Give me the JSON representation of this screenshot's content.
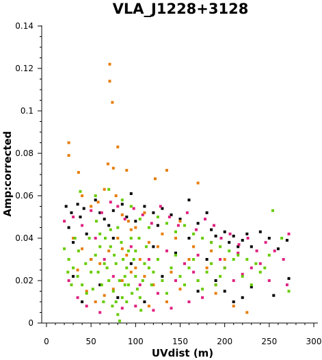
{
  "chart_data": {
    "type": "scatter",
    "title": "VLA_J1228+3128",
    "xlabel": "UVdist (m)",
    "ylabel": "Amp:corrected",
    "xlim": [
      0,
      300
    ],
    "ylim": [
      0,
      0.14
    ],
    "xticks": [
      "0",
      "50",
      "100",
      "150",
      "200",
      "250",
      "300"
    ],
    "yticks": [
      "0",
      "0.02",
      "0.04",
      "0.06",
      "0.08",
      "0.1",
      "0.12",
      "0.14"
    ],
    "grid": false,
    "legend": "none",
    "series": [
      {
        "color": "#000000",
        "points": [
          [
            22,
            0.055
          ],
          [
            25,
            0.045
          ],
          [
            28,
            0.052
          ],
          [
            35,
            0.056
          ],
          [
            38,
            0.05
          ],
          [
            42,
            0.054
          ],
          [
            30,
            0.038
          ],
          [
            45,
            0.042
          ],
          [
            55,
            0.058
          ],
          [
            60,
            0.052
          ],
          [
            65,
            0.049
          ],
          [
            70,
            0.046
          ],
          [
            75,
            0.053
          ],
          [
            85,
            0.056
          ],
          [
            90,
            0.05
          ],
          [
            95,
            0.061
          ],
          [
            100,
            0.048
          ],
          [
            110,
            0.055
          ],
          [
            120,
            0.052
          ],
          [
            125,
            0.046
          ],
          [
            130,
            0.054
          ],
          [
            140,
            0.051
          ],
          [
            150,
            0.049
          ],
          [
            160,
            0.058
          ],
          [
            170,
            0.047
          ],
          [
            180,
            0.052
          ],
          [
            185,
            0.044
          ],
          [
            190,
            0.041
          ],
          [
            200,
            0.043
          ],
          [
            205,
            0.038
          ],
          [
            210,
            0.041
          ],
          [
            215,
            0.036
          ],
          [
            220,
            0.039
          ],
          [
            225,
            0.042
          ],
          [
            230,
            0.036
          ],
          [
            240,
            0.043
          ],
          [
            250,
            0.04
          ],
          [
            255,
            0.013
          ],
          [
            260,
            0.035
          ],
          [
            270,
            0.039
          ],
          [
            272,
            0.021
          ],
          [
            230,
            0.017
          ],
          [
            220,
            0.012
          ],
          [
            210,
            0.01
          ],
          [
            200,
            0.015
          ],
          [
            145,
            0.033
          ],
          [
            95,
            0.028
          ],
          [
            50,
            0.03
          ],
          [
            60,
            0.018
          ],
          [
            80,
            0.012
          ],
          [
            110,
            0.01
          ],
          [
            130,
            0.022
          ],
          [
            170,
            0.015
          ],
          [
            190,
            0.02
          ],
          [
            40,
            0.01
          ],
          [
            30,
            0.022
          ],
          [
            120,
            0.036
          ],
          [
            160,
            0.04
          ],
          [
            180,
            0.03
          ],
          [
            75,
            0.04
          ]
        ]
      },
      {
        "color": "#e0207f",
        "points": [
          [
            20,
            0.048
          ],
          [
            30,
            0.05
          ],
          [
            40,
            0.046
          ],
          [
            50,
            0.053
          ],
          [
            62,
            0.052
          ],
          [
            72,
            0.057
          ],
          [
            80,
            0.055
          ],
          [
            88,
            0.049
          ],
          [
            98,
            0.054
          ],
          [
            108,
            0.051
          ],
          [
            118,
            0.047
          ],
          [
            128,
            0.055
          ],
          [
            138,
            0.05
          ],
          [
            148,
            0.046
          ],
          [
            158,
            0.052
          ],
          [
            168,
            0.044
          ],
          [
            178,
            0.049
          ],
          [
            188,
            0.046
          ],
          [
            196,
            0.04
          ],
          [
            206,
            0.042
          ],
          [
            216,
            0.037
          ],
          [
            226,
            0.04
          ],
          [
            236,
            0.034
          ],
          [
            246,
            0.038
          ],
          [
            256,
            0.034
          ],
          [
            266,
            0.03
          ],
          [
            272,
            0.042
          ],
          [
            270,
            0.018
          ],
          [
            250,
            0.02
          ],
          [
            240,
            0.028
          ],
          [
            230,
            0.026
          ],
          [
            220,
            0.023
          ],
          [
            210,
            0.02
          ],
          [
            200,
            0.026
          ],
          [
            190,
            0.018
          ],
          [
            175,
            0.012
          ],
          [
            160,
            0.01
          ],
          [
            140,
            0.007
          ],
          [
            120,
            0.006
          ],
          [
            100,
            0.008
          ],
          [
            85,
            0.007
          ],
          [
            60,
            0.005
          ],
          [
            45,
            0.008
          ],
          [
            35,
            0.012
          ],
          [
            25,
            0.02
          ],
          [
            55,
            0.04
          ],
          [
            95,
            0.036
          ],
          [
            115,
            0.03
          ],
          [
            135,
            0.034
          ],
          [
            155,
            0.028
          ],
          [
            170,
            0.032
          ],
          [
            185,
            0.038
          ],
          [
            65,
            0.03
          ],
          [
            75,
            0.022
          ],
          [
            105,
            0.018
          ],
          [
            125,
            0.014
          ],
          [
            145,
            0.02
          ],
          [
            165,
            0.024
          ],
          [
            195,
            0.03
          ],
          [
            215,
            0.033
          ]
        ]
      },
      {
        "color": "#e87d0a",
        "points": [
          [
            71,
            0.122
          ],
          [
            71,
            0.114
          ],
          [
            74,
            0.104
          ],
          [
            80,
            0.083
          ],
          [
            25,
            0.085
          ],
          [
            25,
            0.079
          ],
          [
            36,
            0.071
          ],
          [
            69,
            0.075
          ],
          [
            75,
            0.073
          ],
          [
            90,
            0.072
          ],
          [
            135,
            0.072
          ],
          [
            40,
            0.06
          ],
          [
            50,
            0.055
          ],
          [
            58,
            0.057
          ],
          [
            65,
            0.063
          ],
          [
            78,
            0.06
          ],
          [
            85,
            0.051
          ],
          [
            92,
            0.048
          ],
          [
            100,
            0.045
          ],
          [
            110,
            0.052
          ],
          [
            122,
            0.068
          ],
          [
            170,
            0.066
          ],
          [
            150,
            0.048
          ],
          [
            130,
            0.042
          ],
          [
            115,
            0.038
          ],
          [
            105,
            0.03
          ],
          [
            95,
            0.024
          ],
          [
            85,
            0.02
          ],
          [
            75,
            0.016
          ],
          [
            65,
            0.013
          ],
          [
            55,
            0.01
          ],
          [
            45,
            0.015
          ],
          [
            35,
            0.025
          ],
          [
            30,
            0.04
          ],
          [
            40,
            0.035
          ],
          [
            50,
            0.03
          ],
          [
            60,
            0.028
          ],
          [
            70,
            0.034
          ],
          [
            80,
            0.04
          ],
          [
            90,
            0.032
          ],
          [
            100,
            0.026
          ],
          [
            110,
            0.022
          ],
          [
            120,
            0.018
          ],
          [
            140,
            0.024
          ],
          [
            160,
            0.03
          ],
          [
            180,
            0.026
          ],
          [
            200,
            0.03
          ],
          [
            210,
            0.008
          ],
          [
            225,
            0.005
          ],
          [
            190,
            0.014
          ],
          [
            170,
            0.02
          ],
          [
            150,
            0.016
          ],
          [
            135,
            0.01
          ],
          [
            115,
            0.008
          ],
          [
            85,
            0.035
          ],
          [
            95,
            0.044
          ],
          [
            125,
            0.036
          ],
          [
            145,
            0.04
          ],
          [
            165,
            0.036
          ],
          [
            185,
            0.034
          ]
        ]
      },
      {
        "color": "#66cc00",
        "points": [
          [
            38,
            0.062
          ],
          [
            55,
            0.06
          ],
          [
            70,
            0.063
          ],
          [
            85,
            0.058
          ],
          [
            95,
            0.055
          ],
          [
            105,
            0.049
          ],
          [
            115,
            0.045
          ],
          [
            125,
            0.05
          ],
          [
            135,
            0.047
          ],
          [
            145,
            0.043
          ],
          [
            155,
            0.046
          ],
          [
            165,
            0.042
          ],
          [
            175,
            0.04
          ],
          [
            185,
            0.038
          ],
          [
            195,
            0.036
          ],
          [
            205,
            0.034
          ],
          [
            215,
            0.032
          ],
          [
            225,
            0.03
          ],
          [
            235,
            0.028
          ],
          [
            245,
            0.026
          ],
          [
            254,
            0.053
          ],
          [
            264,
            0.04
          ],
          [
            272,
            0.015
          ],
          [
            20,
            0.035
          ],
          [
            25,
            0.03
          ],
          [
            30,
            0.026
          ],
          [
            35,
            0.022
          ],
          [
            40,
            0.018
          ],
          [
            45,
            0.014
          ],
          [
            50,
            0.024
          ],
          [
            55,
            0.032
          ],
          [
            60,
            0.036
          ],
          [
            65,
            0.028
          ],
          [
            70,
            0.02
          ],
          [
            75,
            0.015
          ],
          [
            78,
            0.01
          ],
          [
            80,
            0.004
          ],
          [
            82,
            0.001
          ],
          [
            85,
            0.012
          ],
          [
            88,
            0.018
          ],
          [
            90,
            0.026
          ],
          [
            92,
            0.034
          ],
          [
            95,
            0.04
          ],
          [
            98,
            0.03
          ],
          [
            100,
            0.022
          ],
          [
            102,
            0.016
          ],
          [
            105,
            0.012
          ],
          [
            108,
            0.02
          ],
          [
            110,
            0.028
          ],
          [
            112,
            0.036
          ],
          [
            115,
            0.026
          ],
          [
            118,
            0.018
          ],
          [
            120,
            0.024
          ],
          [
            125,
            0.03
          ],
          [
            130,
            0.02
          ],
          [
            135,
            0.014
          ],
          [
            140,
            0.026
          ],
          [
            145,
            0.032
          ],
          [
            150,
            0.022
          ],
          [
            155,
            0.018
          ],
          [
            160,
            0.026
          ],
          [
            165,
            0.03
          ],
          [
            170,
            0.02
          ],
          [
            175,
            0.016
          ],
          [
            180,
            0.024
          ],
          [
            185,
            0.028
          ],
          [
            190,
            0.018
          ],
          [
            195,
            0.022
          ],
          [
            200,
            0.026
          ],
          [
            210,
            0.03
          ],
          [
            220,
            0.022
          ],
          [
            230,
            0.018
          ],
          [
            240,
            0.024
          ],
          [
            250,
            0.032
          ],
          [
            60,
            0.042
          ],
          [
            72,
            0.044
          ],
          [
            84,
            0.038
          ],
          [
            68,
            0.026
          ],
          [
            76,
            0.032
          ],
          [
            88,
            0.022
          ],
          [
            96,
            0.014
          ],
          [
            104,
            0.04
          ],
          [
            62,
            0.018
          ],
          [
            74,
            0.008
          ],
          [
            86,
            0.03
          ],
          [
            58,
            0.024
          ],
          [
            66,
            0.04
          ],
          [
            92,
            0.018
          ],
          [
            100,
            0.034
          ],
          [
            48,
            0.04
          ],
          [
            52,
            0.016
          ],
          [
            44,
            0.028
          ],
          [
            36,
            0.034
          ],
          [
            28,
            0.018
          ],
          [
            24,
            0.024
          ],
          [
            32,
            0.04
          ],
          [
            80,
            0.045
          ],
          [
            82,
            0.02
          ],
          [
            78,
            0.028
          ],
          [
            90,
            0.01
          ],
          [
            72,
            0.036
          ],
          [
            64,
            0.01
          ],
          [
            56,
            0.048
          ],
          [
            106,
            0.006
          ]
        ]
      }
    ]
  }
}
